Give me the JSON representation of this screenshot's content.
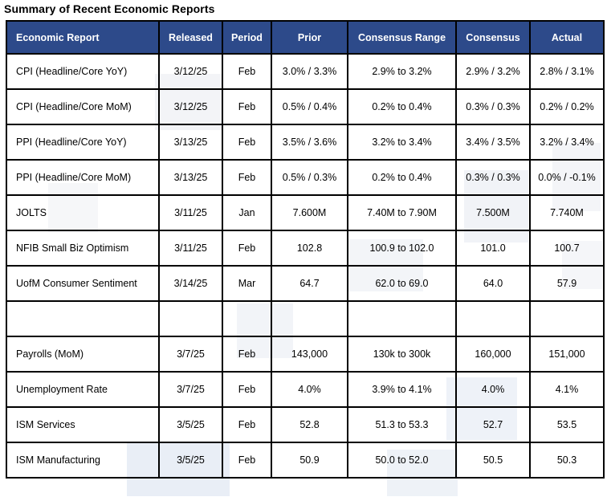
{
  "title": "Summary of Recent Economic Reports",
  "colors": {
    "header_bg": "#2d4a8a",
    "header_text": "#ffffff",
    "border": "#000000",
    "body_text": "#000000",
    "page_bg": "#ffffff"
  },
  "table": {
    "columns": [
      {
        "label": "Economic Report"
      },
      {
        "label": "Released"
      },
      {
        "label": "Period"
      },
      {
        "label": "Prior"
      },
      {
        "label": "Consensus Range"
      },
      {
        "label": "Consensus"
      },
      {
        "label": "Actual"
      }
    ],
    "rows": [
      [
        "CPI (Headline/Core YoY)",
        "3/12/25",
        "Feb",
        "3.0% / 3.3%",
        "2.9% to 3.2%",
        "2.9% / 3.2%",
        "2.8% / 3.1%"
      ],
      [
        "CPI (Headline/Core MoM)",
        "3/12/25",
        "Feb",
        "0.5% / 0.4%",
        "0.2% to 0.4%",
        "0.3% / 0.3%",
        "0.2% / 0.2%"
      ],
      [
        "PPI (Headline/Core YoY)",
        "3/13/25",
        "Feb",
        "3.5% / 3.6%",
        "3.2% to 3.4%",
        "3.4% / 3.5%",
        "3.2% / 3.4%"
      ],
      [
        "PPI (Headline/Core MoM)",
        "3/13/25",
        "Feb",
        "0.5% / 0.3%",
        "0.2% to 0.4%",
        "0.3% / 0.3%",
        "0.0% / -0.1%"
      ],
      [
        "JOLTS",
        "3/11/25",
        "Jan",
        "7.600M",
        "7.40M to 7.90M",
        "7.500M",
        "7.740M"
      ],
      [
        "NFIB Small Biz Optimism",
        "3/11/25",
        "Feb",
        "102.8",
        "100.9 to 102.0",
        "101.0",
        "100.7"
      ],
      [
        "UofM Consumer Sentiment",
        "3/14/25",
        "Mar",
        "64.7",
        "62.0 to 69.0",
        "64.0",
        "57.9"
      ],
      [
        "",
        "",
        "",
        "",
        "",
        "",
        ""
      ],
      [
        "Payrolls (MoM)",
        "3/7/25",
        "Feb",
        "143,000",
        "130k to 300k",
        "160,000",
        "151,000"
      ],
      [
        "Unemployment Rate",
        "3/7/25",
        "Feb",
        "4.0%",
        "3.9% to 4.1%",
        "4.0%",
        "4.1%"
      ],
      [
        "ISM Services",
        "3/5/25",
        "Feb",
        "52.8",
        "51.3 to 53.3",
        "52.7",
        "53.5"
      ],
      [
        "ISM Manufacturing",
        "3/5/25",
        "Feb",
        "50.9",
        "50.0 to 52.0",
        "50.5",
        "50.3"
      ]
    ]
  }
}
